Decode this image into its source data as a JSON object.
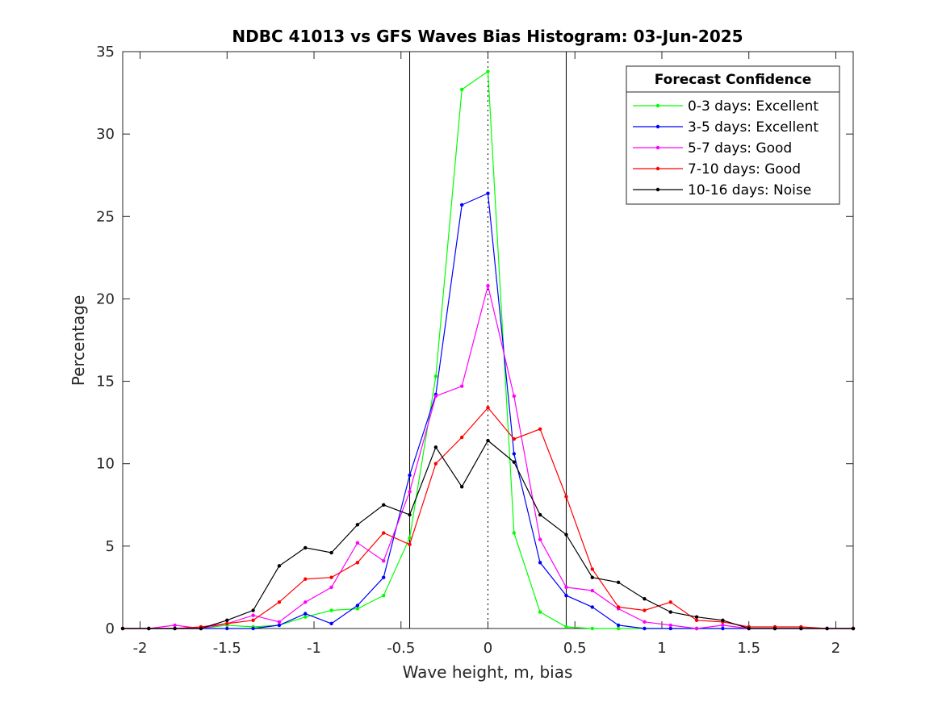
{
  "chart_data": {
    "type": "line",
    "title": "NDBC 41013 vs GFS Waves Bias Histogram: 03-Jun-2025",
    "xlabel": "Wave height, m, bias",
    "ylabel": "Percentage",
    "xlim": [
      -2.1,
      2.1
    ],
    "ylim": [
      0,
      35
    ],
    "xticks": [
      -2,
      -1.5,
      -1,
      -0.5,
      0,
      0.5,
      1,
      1.5,
      2
    ],
    "xtick_labels": [
      "-2",
      "-1.5",
      "-1",
      "-0.5",
      "0",
      "0.5",
      "1",
      "1.5",
      "2"
    ],
    "yticks": [
      0,
      5,
      10,
      15,
      20,
      25,
      30,
      35
    ],
    "ytick_labels": [
      "0",
      "5",
      "10",
      "15",
      "20",
      "25",
      "30",
      "35"
    ],
    "grid": false,
    "legend_placement": "top-right",
    "legend_title": "Forecast Confidence",
    "reference_lines": {
      "solid_x": [
        -0.45,
        0.45
      ],
      "dotted_x": [
        0
      ],
      "color": "#000000"
    },
    "x": [
      -2.1,
      -1.95,
      -1.8,
      -1.65,
      -1.5,
      -1.35,
      -1.2,
      -1.05,
      -0.9,
      -0.75,
      -0.6,
      -0.45,
      -0.3,
      -0.15,
      0,
      0.15,
      0.3,
      0.45,
      0.6,
      0.75,
      0.9,
      1.05,
      1.2,
      1.35,
      1.5,
      1.65,
      1.8,
      1.95,
      2.1
    ],
    "series": [
      {
        "name": "0-3 days: Excellent",
        "color": "#00ff00",
        "values": [
          0,
          0,
          0,
          0,
          0.2,
          0.1,
          0.2,
          0.7,
          1.1,
          1.2,
          2.0,
          5.5,
          15.3,
          32.7,
          33.8,
          5.8,
          1.0,
          0.1,
          0,
          0,
          0,
          0,
          0,
          0,
          0,
          0,
          0,
          0,
          0
        ]
      },
      {
        "name": "3-5 days: Excellent",
        "color": "#0000ff",
        "values": [
          0,
          0,
          0,
          0,
          0,
          0,
          0.2,
          0.9,
          0.3,
          1.4,
          3.1,
          9.3,
          14.2,
          25.7,
          26.4,
          10.6,
          4.0,
          2.0,
          1.3,
          0.2,
          0,
          0,
          0,
          0,
          0,
          0,
          0,
          0,
          0
        ]
      },
      {
        "name": "5-7 days: Good",
        "color": "#ff00ff",
        "values": [
          0,
          0,
          0.2,
          0,
          0.3,
          0.8,
          0.4,
          1.6,
          2.5,
          5.2,
          4.1,
          8.3,
          14.1,
          14.7,
          20.8,
          14.1,
          5.4,
          2.5,
          2.3,
          1.2,
          0.4,
          0.2,
          0,
          0.2,
          0,
          0,
          0,
          0,
          0
        ]
      },
      {
        "name": "7-10 days: Good",
        "color": "#ff0000",
        "values": [
          0,
          0,
          0,
          0.1,
          0.3,
          0.5,
          1.6,
          3.0,
          3.1,
          4.0,
          5.8,
          5.1,
          10.0,
          11.6,
          13.4,
          11.5,
          12.1,
          8.0,
          3.6,
          1.3,
          1.1,
          1.6,
          0.5,
          0.4,
          0.1,
          0.1,
          0.1,
          0,
          0
        ]
      },
      {
        "name": "10-16 days: Noise",
        "color": "#000000",
        "values": [
          0,
          0,
          0,
          0,
          0.5,
          1.1,
          3.8,
          4.9,
          4.6,
          6.3,
          7.5,
          6.9,
          11.0,
          8.6,
          11.4,
          10.1,
          6.9,
          5.7,
          3.1,
          2.8,
          1.8,
          1.0,
          0.7,
          0.5,
          0,
          0,
          0,
          0,
          0
        ]
      }
    ]
  }
}
